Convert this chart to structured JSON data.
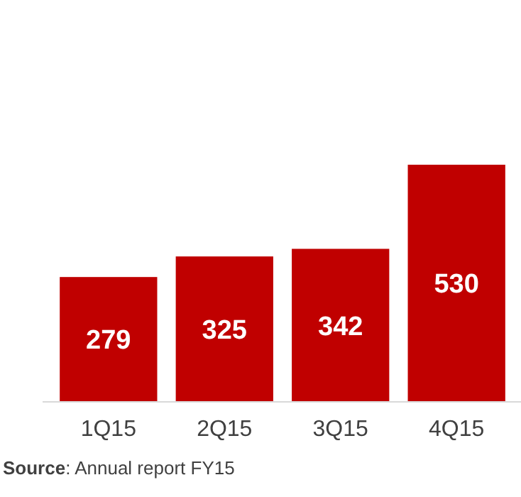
{
  "chart_data": {
    "type": "bar",
    "categories": [
      "1Q15",
      "2Q15",
      "3Q15",
      "4Q15"
    ],
    "values": [
      279,
      325,
      342,
      530
    ],
    "color": "#c00000",
    "data_labels": true,
    "annotations": [
      "Source: Annual report FY15"
    ]
  }
}
